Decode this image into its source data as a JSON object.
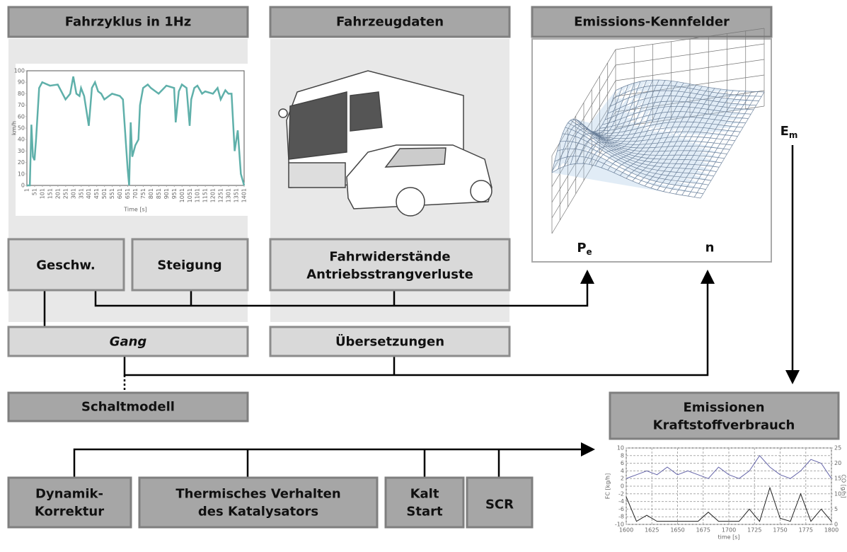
{
  "headers": {
    "cycle": "Fahrzyklus in 1Hz",
    "vehicle": "Fahrzeugdaten",
    "maps": "Emissions-Kennfelder",
    "shift": "Schaltmodell",
    "emissions": [
      "Emissionen",
      "Kraftstoffverbrauch"
    ]
  },
  "boxes": {
    "speed": "Geschw.",
    "slope": "Steigung",
    "resist": [
      "Fahrwiderstände",
      "Antriebsstrangverluste"
    ],
    "gear": "Gang",
    "ratios": "Übersetzungen",
    "dynamic": [
      "Dynamik-",
      "Korrektur"
    ],
    "thermal": [
      "Thermisches Verhalten",
      "des Katalysators"
    ],
    "cold": [
      "Kalt",
      "Start"
    ],
    "scr": "SCR"
  },
  "labels": {
    "pe": {
      "main": "P",
      "sub": "e"
    },
    "n": "n",
    "em": {
      "main": "E",
      "sub": "m"
    }
  },
  "chart_data": [
    {
      "type": "line",
      "ylabel": "km/h",
      "xlabel": "Time [s]",
      "color": "#5fb0aa",
      "grid": false,
      "x": [
        1,
        20,
        30,
        40,
        50,
        60,
        80,
        100,
        150,
        200,
        250,
        280,
        300,
        320,
        340,
        350,
        370,
        400,
        420,
        440,
        460,
        480,
        500,
        550,
        600,
        620,
        650,
        660,
        670,
        680,
        700,
        720,
        730,
        750,
        780,
        800,
        850,
        900,
        950,
        960,
        980,
        1000,
        1030,
        1050,
        1060,
        1080,
        1100,
        1130,
        1150,
        1200,
        1230,
        1250,
        1280,
        1300,
        1320,
        1340,
        1360,
        1380,
        1401
      ],
      "values": [
        0,
        0,
        53,
        25,
        22,
        40,
        85,
        90,
        87,
        88,
        75,
        80,
        95,
        80,
        78,
        85,
        78,
        52,
        85,
        90,
        82,
        80,
        75,
        80,
        78,
        75,
        15,
        0,
        55,
        25,
        35,
        40,
        70,
        85,
        88,
        85,
        80,
        87,
        85,
        55,
        82,
        88,
        85,
        52,
        75,
        85,
        87,
        80,
        82,
        80,
        85,
        75,
        83,
        80,
        80,
        30,
        48,
        10,
        0
      ],
      "xlim": [
        1,
        1401
      ],
      "xticks": [
        1,
        51,
        101,
        151,
        201,
        251,
        301,
        351,
        401,
        451,
        501,
        551,
        601,
        651,
        701,
        751,
        801,
        851,
        901,
        951,
        1001,
        1051,
        1101,
        1151,
        1201,
        1251,
        1301,
        1351,
        1401
      ],
      "ylim": [
        0,
        100
      ],
      "yticks": [
        0,
        10,
        20,
        30,
        40,
        50,
        60,
        70,
        80,
        90,
        100
      ]
    },
    {
      "type": "line",
      "ylabel": "FC [kg/h]",
      "y2label": "CO [g/h]",
      "xlabel": "time [s]",
      "grid": true,
      "x": [
        1600,
        1610,
        1620,
        1630,
        1640,
        1650,
        1660,
        1670,
        1680,
        1690,
        1700,
        1710,
        1720,
        1730,
        1740,
        1750,
        1760,
        1770,
        1780,
        1790,
        1800
      ],
      "series": [
        {
          "color": "#6464a8",
          "values": [
            2,
            3,
            4,
            3,
            5,
            3,
            4,
            3,
            2,
            5,
            3,
            2,
            4,
            8,
            5,
            3,
            2,
            4,
            7,
            6,
            2
          ]
        },
        {
          "color": "#222222",
          "axis": "y2",
          "values": [
            9,
            1,
            3,
            1,
            1,
            1,
            1,
            1,
            4,
            1,
            1,
            1,
            5,
            1,
            12,
            2,
            1,
            10,
            1,
            5,
            1
          ]
        }
      ],
      "xlim": [
        1600,
        1800
      ],
      "xticks": [
        1600,
        1625,
        1650,
        1675,
        1700,
        1725,
        1750,
        1775,
        1800
      ],
      "ylim": [
        -10,
        10
      ],
      "yticks": [
        -10,
        -8,
        -6,
        -4,
        -2,
        0,
        2,
        4,
        6,
        8,
        10
      ],
      "y2lim": [
        0,
        25
      ],
      "y2ticks": [
        0,
        5,
        10,
        15,
        20,
        25
      ]
    }
  ]
}
